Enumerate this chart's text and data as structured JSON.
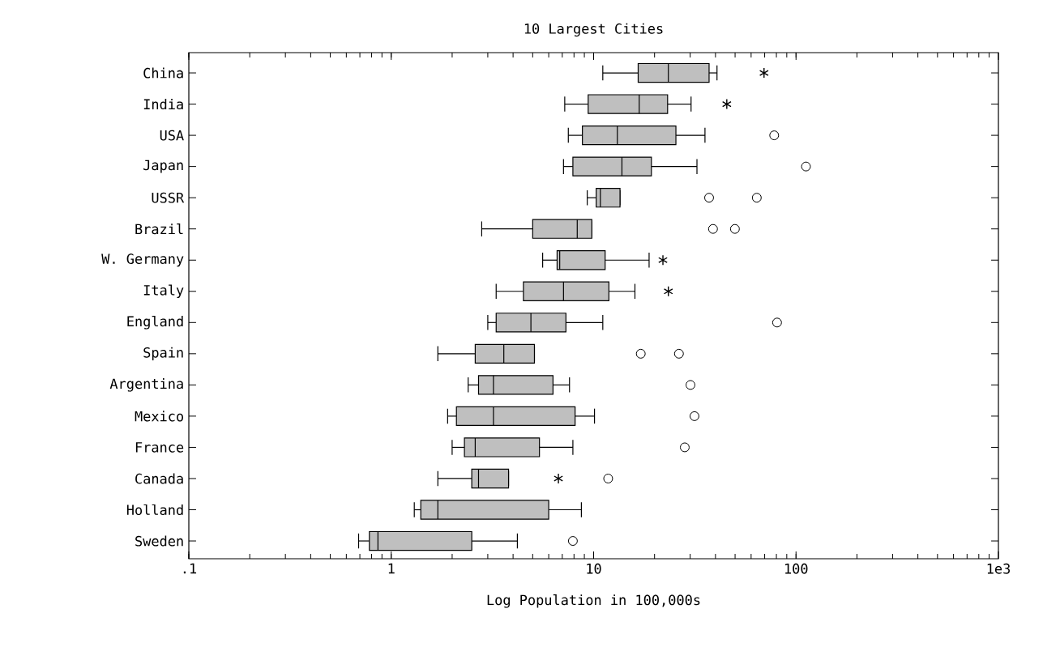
{
  "chart_data": {
    "type": "box",
    "title": "10 Largest Cities",
    "xlabel": "Log Population in 100,000s",
    "orientation": "horizontal",
    "log": "x",
    "categories": [
      "China",
      "India",
      "USA",
      "Japan",
      "USSR",
      "Brazil",
      "W. Germany",
      "Italy",
      "England",
      "Spain",
      "Argentina",
      "Mexico",
      "France",
      "Canada",
      "Holland",
      "Sweden"
    ],
    "xlim": [
      0.1,
      1000
    ],
    "xticks": [
      {
        "value": 0.1,
        "label": ".1"
      },
      1,
      10,
      100,
      {
        "value": 1000,
        "label": "1e3"
      }
    ],
    "boxes": [
      {
        "low": 11.1,
        "q1": 16.6,
        "median": 23.4,
        "q3": 37.2,
        "high": 40.7
      },
      {
        "low": 7.2,
        "q1": 9.4,
        "median": 16.8,
        "q3": 23.2,
        "high": 30.3
      },
      {
        "low": 7.5,
        "q1": 8.8,
        "median": 13.1,
        "q3": 25.5,
        "high": 35.5,
        "outliers": [
          78
        ]
      },
      {
        "low": 7.1,
        "q1": 7.9,
        "median": 13.8,
        "q3": 19.3,
        "high": 32.4,
        "outliers": [
          112
        ]
      },
      {
        "low": 9.3,
        "q1": 10.3,
        "median": 10.8,
        "q3": 13.5,
        "high": 13.5,
        "outliers": [
          37.2,
          64
        ]
      },
      {
        "low": 2.8,
        "q1": 5.0,
        "median": 8.3,
        "q3": 9.8,
        "high": 9.8,
        "outliers": [
          38.9,
          49.9
        ]
      },
      {
        "low": 5.6,
        "q1": 6.6,
        "median": 6.8,
        "q3": 11.4,
        "high": 18.8
      },
      {
        "low": 3.3,
        "q1": 4.5,
        "median": 7.1,
        "q3": 11.9,
        "high": 16.0
      },
      {
        "low": 3.0,
        "q1": 3.3,
        "median": 4.9,
        "q3": 7.3,
        "high": 11.1,
        "outliers": [
          80.6
        ]
      },
      {
        "low": 1.7,
        "q1": 2.6,
        "median": 3.6,
        "q3": 5.1,
        "high": 5.1,
        "outliers": [
          17.1,
          26.4
        ]
      },
      {
        "low": 2.4,
        "q1": 2.7,
        "median": 3.2,
        "q3": 6.3,
        "high": 7.6,
        "outliers": [
          30.1
        ]
      },
      {
        "low": 1.9,
        "q1": 2.1,
        "median": 3.2,
        "q3": 8.1,
        "high": 10.1,
        "outliers": [
          31.5
        ]
      },
      {
        "low": 2.0,
        "q1": 2.3,
        "median": 2.6,
        "q3": 5.4,
        "high": 7.9,
        "outliers": [
          28.2
        ]
      },
      {
        "low": 1.7,
        "q1": 2.5,
        "median": 2.7,
        "q3": 3.8,
        "high": 3.8,
        "outliers": [
          11.8
        ]
      },
      {
        "low": 1.3,
        "q1": 1.4,
        "median": 1.7,
        "q3": 6.0,
        "high": 8.7
      },
      {
        "low": 0.69,
        "q1": 0.78,
        "median": 0.86,
        "q3": 2.5,
        "high": 4.2,
        "outliers": [
          7.9
        ]
      }
    ],
    "series": [
      {
        "type": "scatter",
        "marker": "cross",
        "values": [
          69.5,
          45.5,
          null,
          null,
          null,
          null,
          22.0,
          23.4,
          null,
          null,
          null,
          null,
          null,
          6.7,
          null,
          null
        ]
      }
    ]
  }
}
